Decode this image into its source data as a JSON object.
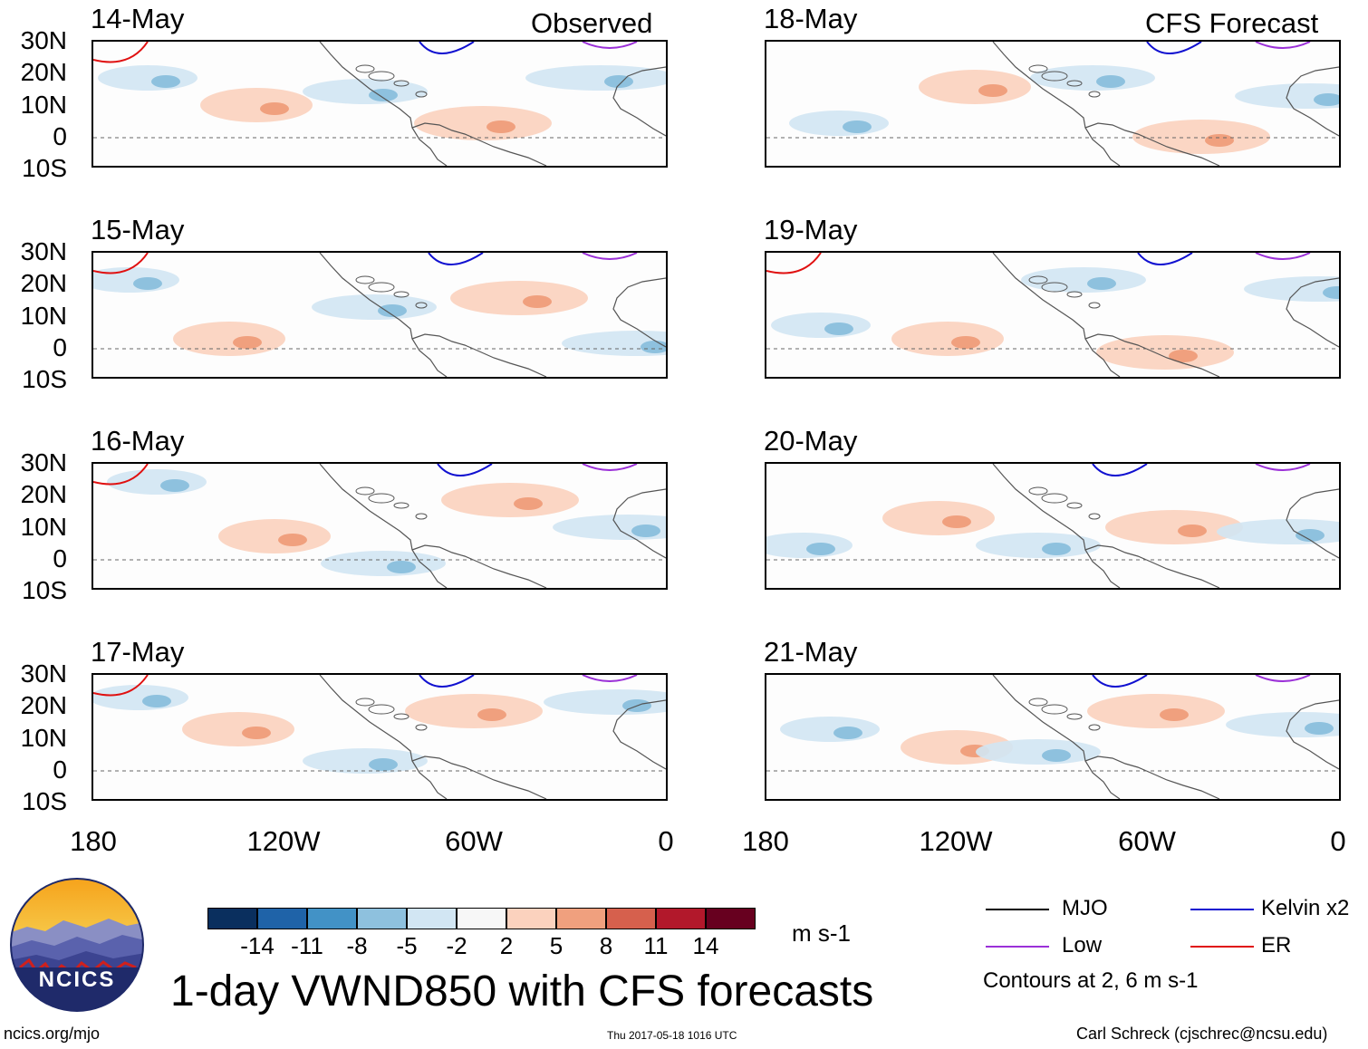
{
  "panels": {
    "left_header": "Observed",
    "right_header": "CFS Forecast",
    "left_dates": [
      "14-May",
      "15-May",
      "16-May",
      "17-May"
    ],
    "right_dates": [
      "18-May",
      "19-May",
      "20-May",
      "21-May"
    ]
  },
  "axes": {
    "lat_labels": [
      "30N",
      "20N",
      "10N",
      "0",
      "10S"
    ],
    "lon_labels": [
      "180",
      "120W",
      "60W",
      "0"
    ]
  },
  "colorbar": {
    "labels": [
      "-14",
      "-11",
      "-8",
      "-5",
      "-2",
      "2",
      "5",
      "8",
      "11",
      "14"
    ],
    "colors": [
      "#0a2f5e",
      "#1f63a8",
      "#4292c6",
      "#8ec1de",
      "#d2e6f3",
      "#f7f7f7",
      "#fbd2be",
      "#f0a07e",
      "#d6604d",
      "#b2182b",
      "#67001f"
    ],
    "units": "m s-1"
  },
  "legend": {
    "mjo": "MJO",
    "low": "Low",
    "kelvin": "Kelvin x2",
    "er": "ER",
    "contour_note": "Contours at 2, 6 m s-1",
    "colors": {
      "mjo": "#000000",
      "low": "#9b30d8",
      "kelvin": "#1010d0",
      "er": "#e01010"
    }
  },
  "title": "1-day VWND850 with CFS forecasts",
  "logo_text": "NCICS",
  "footer": {
    "url": "ncics.org/mjo",
    "timestamp": "Thu 2017-05-18 1016 UTC",
    "credit": "Carl Schreck (cjschrec@ncsu.edu)"
  }
}
